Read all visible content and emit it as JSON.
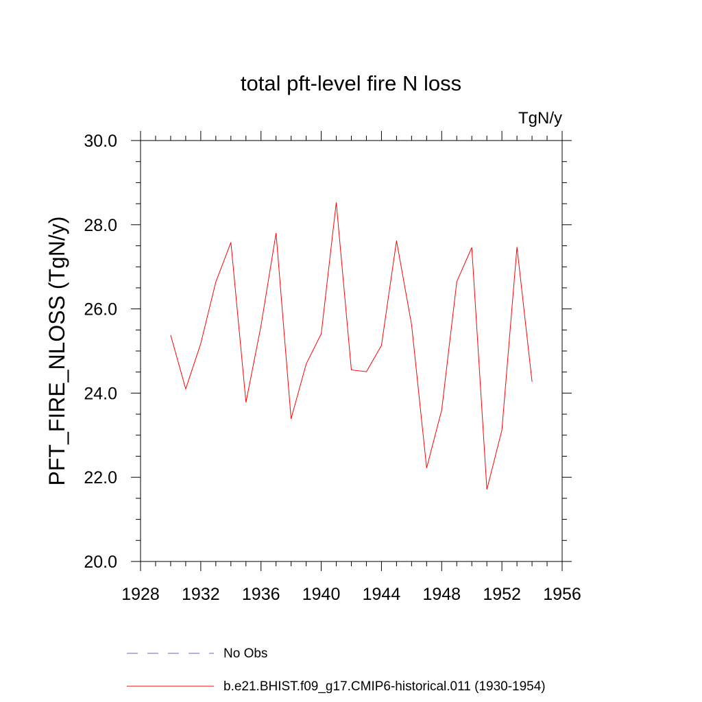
{
  "chart_data": {
    "type": "line",
    "title": "total pft-level fire N loss",
    "units_label": "TgN/y",
    "xlabel": "",
    "ylabel": "PFT_FIRE_NLOSS  (TgN/y)",
    "xlim": [
      1928,
      1956
    ],
    "ylim": [
      20.0,
      30.0
    ],
    "x_ticks": [
      "1928",
      "1932",
      "1936",
      "1940",
      "1944",
      "1948",
      "1952",
      "1956"
    ],
    "y_ticks": [
      "20.0",
      "22.0",
      "24.0",
      "26.0",
      "28.0",
      "30.0"
    ],
    "grid": false,
    "legend_position": "bottom",
    "series": [
      {
        "name": "b.e21.BHIST.f09_g17.CMIP6-historical.011 (1930-1954)",
        "color": "#ff0000",
        "style": "solid",
        "x": [
          1930,
          1931,
          1932,
          1933,
          1934,
          1935,
          1936,
          1937,
          1938,
          1939,
          1940,
          1941,
          1942,
          1943,
          1944,
          1945,
          1946,
          1947,
          1948,
          1949,
          1950,
          1951,
          1952,
          1953,
          1954
        ],
        "y": [
          25.38,
          24.1,
          25.18,
          26.64,
          27.58,
          23.78,
          25.6,
          27.8,
          23.39,
          24.69,
          25.41,
          28.53,
          24.55,
          24.51,
          25.13,
          27.62,
          25.62,
          22.22,
          23.6,
          26.65,
          27.46,
          21.71,
          23.12,
          27.47,
          24.27
        ]
      }
    ],
    "legend": [
      {
        "label": "No Obs",
        "color": "#6666cc",
        "style": "dashed"
      },
      {
        "label": "b.e21.BHIST.f09_g17.CMIP6-historical.011 (1930-1954)",
        "color": "#ff0000",
        "style": "solid"
      }
    ]
  }
}
